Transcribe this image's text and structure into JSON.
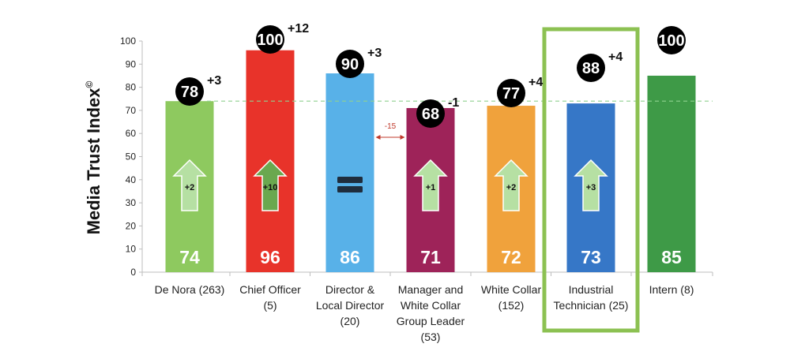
{
  "chart_data": {
    "type": "bar",
    "ylabel": "Media Trust Index",
    "ylabel_mark": "©",
    "ylim": [
      0,
      100
    ],
    "yticks": [
      0,
      10,
      20,
      30,
      40,
      50,
      60,
      70,
      80,
      90,
      100
    ],
    "reference_line": 74,
    "categories": [
      [
        "De Nora (263)"
      ],
      [
        "Chief Officer",
        "(5)"
      ],
      [
        "Director &",
        "Local Director",
        "(20)"
      ],
      [
        "Manager and",
        "White Collar",
        "Group Leader",
        "(53)"
      ],
      [
        "White Collar",
        "(152)"
      ],
      [
        "Industrial",
        "Technician (25)"
      ],
      [
        "Intern (8)"
      ]
    ],
    "values": [
      74,
      96,
      86,
      71,
      72,
      73,
      85
    ],
    "bar_colors": [
      "#8ec95f",
      "#e8332a",
      "#58b1e8",
      "#9e2359",
      "#f0a23c",
      "#3677c7",
      "#3e9a47"
    ],
    "circle_values": [
      "78",
      "100",
      "90",
      "68",
      "77",
      "88",
      "100"
    ],
    "circle_deltas": [
      "+3",
      "+12",
      "+3",
      "-1",
      "+4",
      "+4",
      ""
    ],
    "arrow_deltas": [
      "+2",
      "+10",
      "=",
      "+1",
      "+2",
      "+3",
      ""
    ],
    "gap_annotation": "-15",
    "highlighted_category": 5
  }
}
